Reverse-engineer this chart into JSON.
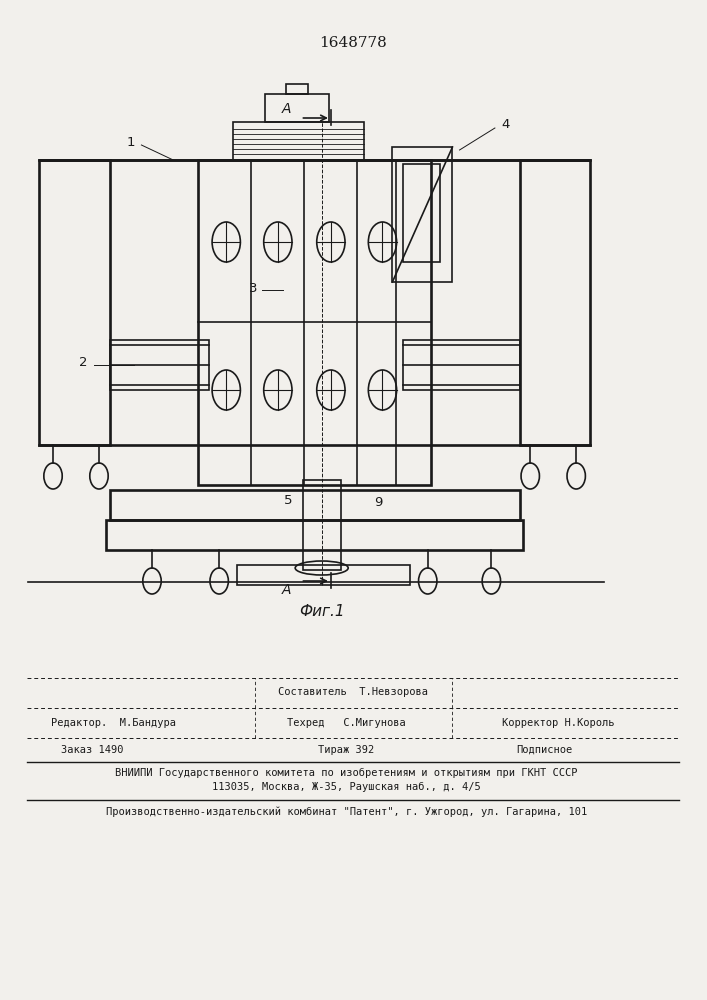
{
  "patent_number": "1648778",
  "fig_label": "Фиг.1",
  "bg_color": "#f2f0ec",
  "line_color": "#1a1a1a",
  "lw": 1.2,
  "footer": {
    "sestavitel": "Составитель  Т.Невзорова",
    "redaktor": "Редактор.  М.Бандура",
    "tekhred": "Техред   С.Мигунова",
    "korrektor": "Корректор Н.Король",
    "zakaz": "Заказ 1490",
    "tirazh": "Тираж 392",
    "podpisnoe": "Подписное",
    "vniipи1": "ВНИИПИ Государственного комитета по изобретениям и открытиям при ГКНТ СССР",
    "vniipи2": "113035, Москва, Ж-35, Раушская наб., д. 4/5",
    "kombinat": "Производственно-издательский комбинат \"Патент\", г. Ужгород, ул. Гагарина, 101"
  }
}
